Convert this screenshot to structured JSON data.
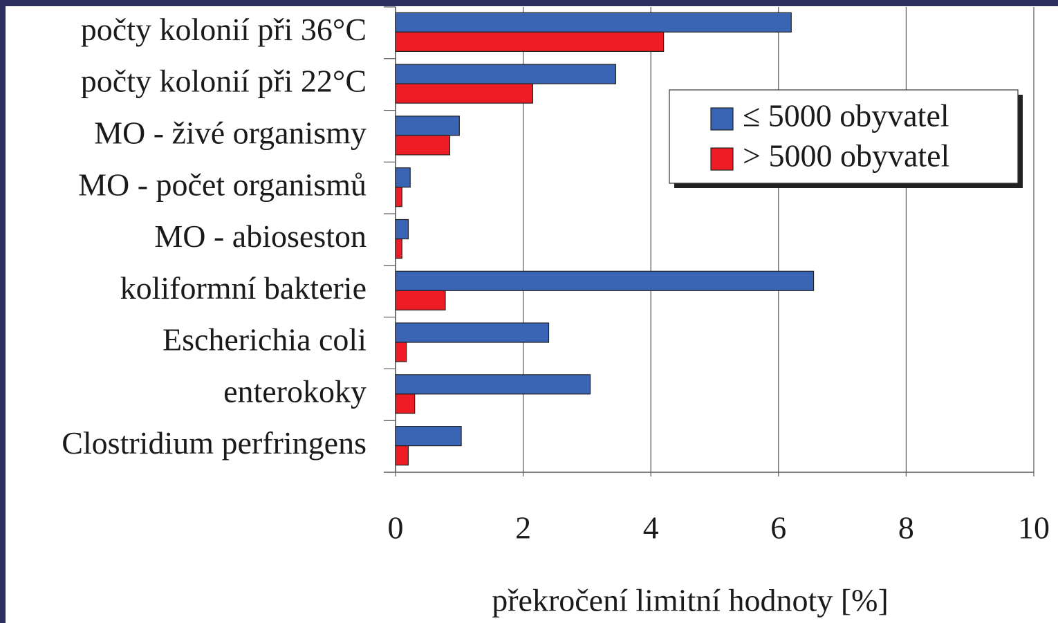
{
  "chart_data": {
    "type": "barh",
    "categories": [
      "počty kolonií při 36°C",
      "počty kolonií při 22°C",
      "MO - živé organismy",
      "MO - počet organismů",
      "MO - abioseston",
      "koliformní bakterie",
      "Escherichia coli",
      "enterokoky",
      "Clostridium perfringens"
    ],
    "series": [
      {
        "name": "≤ 5000 obyvatel",
        "color": "#3a64b4",
        "values": [
          6.2,
          3.45,
          1.0,
          0.23,
          0.2,
          6.55,
          2.4,
          3.05,
          1.03
        ]
      },
      {
        "name": "> 5000 obyvatel",
        "color": "#ee1c24",
        "values": [
          4.2,
          2.15,
          0.85,
          0.1,
          0.1,
          0.78,
          0.17,
          0.3,
          0.2
        ]
      }
    ],
    "x_label": "překročení limitní hodnoty [%]",
    "xlim": [
      0,
      10
    ],
    "xticks": [
      0,
      2,
      4,
      6,
      8,
      10
    ],
    "grid": true,
    "legend": "top-right"
  }
}
